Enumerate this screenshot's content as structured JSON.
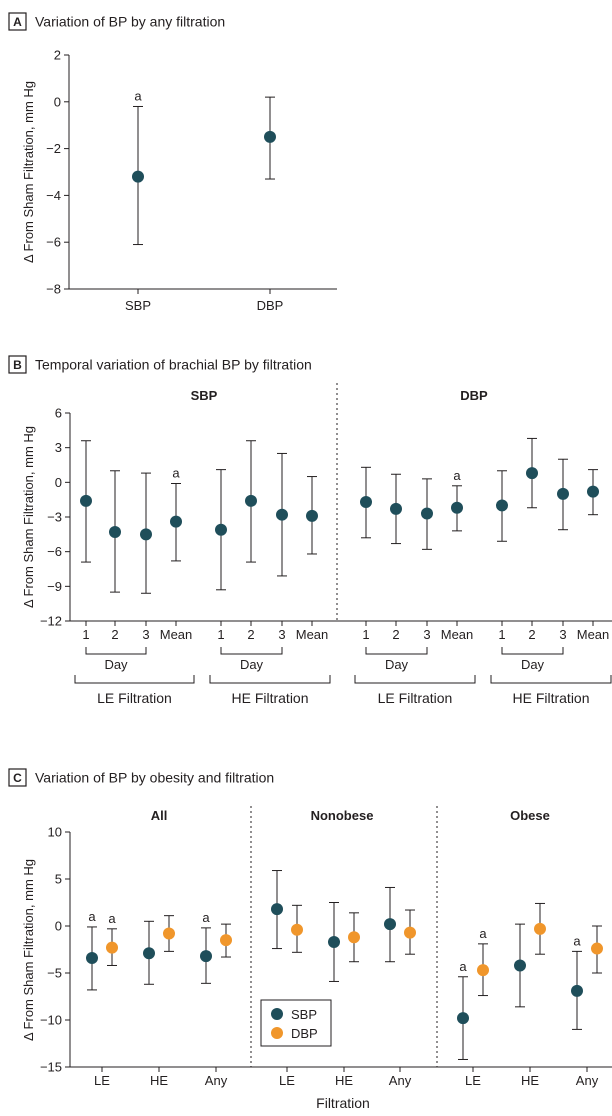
{
  "colors": {
    "sbp": "#1f4e5a",
    "dbp": "#f0962b",
    "axis": "#231f20",
    "whisker": "#231f20"
  },
  "panels": {
    "A": {
      "letter": "A",
      "title": "Variation of BP by any filtration",
      "ylabel": "Δ From Sham Filtration, mm Hg",
      "yticks": [
        "2",
        "0",
        "−2",
        "−4",
        "−6",
        "−8"
      ],
      "categories": [
        "SBP",
        "DBP"
      ]
    },
    "B": {
      "letter": "B",
      "title": "Temporal variation of brachial BP by filtration",
      "ylabel": "Δ From Sham Filtration, mm Hg",
      "yticks": [
        "6",
        "3",
        "0",
        "−3",
        "−6",
        "−9",
        "−12"
      ],
      "group_titles": [
        "SBP",
        "DBP"
      ],
      "xticks": [
        "1",
        "2",
        "3",
        "Mean",
        "1",
        "2",
        "3",
        "Mean",
        "1",
        "2",
        "3",
        "Mean",
        "1",
        "2",
        "3",
        "Mean"
      ],
      "day_label": "Day",
      "filtration_labels": [
        "LE Filtration",
        "HE Filtration",
        "LE Filtration",
        "HE Filtration"
      ]
    },
    "C": {
      "letter": "C",
      "title": "Variation of BP by obesity and filtration",
      "ylabel": "Δ From Sham Filtration, mm Hg",
      "yticks": [
        "10",
        "5",
        "0",
        "−5",
        "−10",
        "−15"
      ],
      "group_titles": [
        "All",
        "Nonobese",
        "Obese"
      ],
      "xticks": [
        "LE",
        "HE",
        "Any",
        "LE",
        "HE",
        "Any",
        "LE",
        "HE",
        "Any"
      ],
      "xlabel": "Filtration",
      "legend": [
        "SBP",
        "DBP"
      ]
    }
  },
  "sig_mark": "a",
  "chart_data": [
    {
      "type": "scatter",
      "panel": "A",
      "title": "Variation of BP by any filtration",
      "ylabel": "Δ From Sham Filtration, mm Hg",
      "ylim": [
        -8,
        2
      ],
      "categories": [
        "SBP",
        "DBP"
      ],
      "values": [
        -3.2,
        -1.5
      ],
      "ci_low": [
        -6.1,
        -3.3
      ],
      "ci_high": [
        -0.2,
        0.2
      ],
      "significant": [
        true,
        false
      ]
    },
    {
      "type": "scatter",
      "panel": "B",
      "title": "Temporal variation of brachial BP by filtration",
      "ylabel": "Δ From Sham Filtration, mm Hg",
      "ylim": [
        -12,
        6
      ],
      "groups": [
        "SBP",
        "DBP"
      ],
      "categories": [
        "1",
        "2",
        "3",
        "Mean",
        "1",
        "2",
        "3",
        "Mean",
        "1",
        "2",
        "3",
        "Mean",
        "1",
        "2",
        "3",
        "Mean"
      ],
      "values": [
        -1.6,
        -4.3,
        -4.5,
        -3.4,
        -4.1,
        -1.6,
        -2.8,
        -2.9,
        -1.7,
        -2.3,
        -2.7,
        -2.2,
        -2.0,
        0.8,
        -1.0,
        -0.8
      ],
      "ci_low": [
        -6.9,
        -9.5,
        -9.6,
        -6.8,
        -9.3,
        -6.9,
        -8.1,
        -6.2,
        -4.8,
        -5.3,
        -5.8,
        -4.2,
        -5.1,
        -2.2,
        -4.1,
        -2.8
      ],
      "ci_high": [
        3.6,
        1.0,
        0.8,
        -0.1,
        1.1,
        3.6,
        2.5,
        0.5,
        1.3,
        0.7,
        0.3,
        -0.3,
        1.0,
        3.8,
        2.0,
        1.1
      ],
      "significant": [
        false,
        false,
        false,
        true,
        false,
        false,
        false,
        false,
        false,
        false,
        false,
        true,
        false,
        false,
        false,
        false
      ]
    },
    {
      "type": "scatter",
      "panel": "C",
      "title": "Variation of BP by obesity and filtration",
      "ylabel": "Δ From Sham Filtration, mm Hg",
      "xlabel": "Filtration",
      "ylim": [
        -15,
        10
      ],
      "groups": [
        "All",
        "Nonobese",
        "Obese"
      ],
      "categories": [
        "LE",
        "HE",
        "Any",
        "LE",
        "HE",
        "Any",
        "LE",
        "HE",
        "Any"
      ],
      "series": [
        {
          "name": "SBP",
          "values": [
            -3.4,
            -2.9,
            -3.2,
            1.8,
            -1.7,
            0.2,
            -9.8,
            -4.2,
            -6.9
          ],
          "ci_low": [
            -6.8,
            -6.2,
            -6.1,
            -2.4,
            -5.9,
            -3.8,
            -14.2,
            -8.6,
            -11.0
          ],
          "ci_high": [
            -0.1,
            0.5,
            -0.2,
            5.9,
            2.5,
            4.1,
            -5.4,
            0.2,
            -2.7
          ],
          "significant": [
            true,
            false,
            true,
            false,
            false,
            false,
            true,
            false,
            true
          ]
        },
        {
          "name": "DBP",
          "values": [
            -2.3,
            -0.8,
            -1.5,
            -0.4,
            -1.2,
            -0.7,
            -4.7,
            -0.3,
            -2.4
          ],
          "ci_low": [
            -4.2,
            -2.7,
            -3.3,
            -2.8,
            -3.8,
            -3.0,
            -7.4,
            -3.0,
            -5.0
          ],
          "ci_high": [
            -0.3,
            1.1,
            0.2,
            2.2,
            1.4,
            1.7,
            -1.9,
            2.4,
            0.0
          ],
          "significant": [
            true,
            false,
            false,
            false,
            false,
            false,
            true,
            false,
            false
          ]
        }
      ]
    }
  ]
}
